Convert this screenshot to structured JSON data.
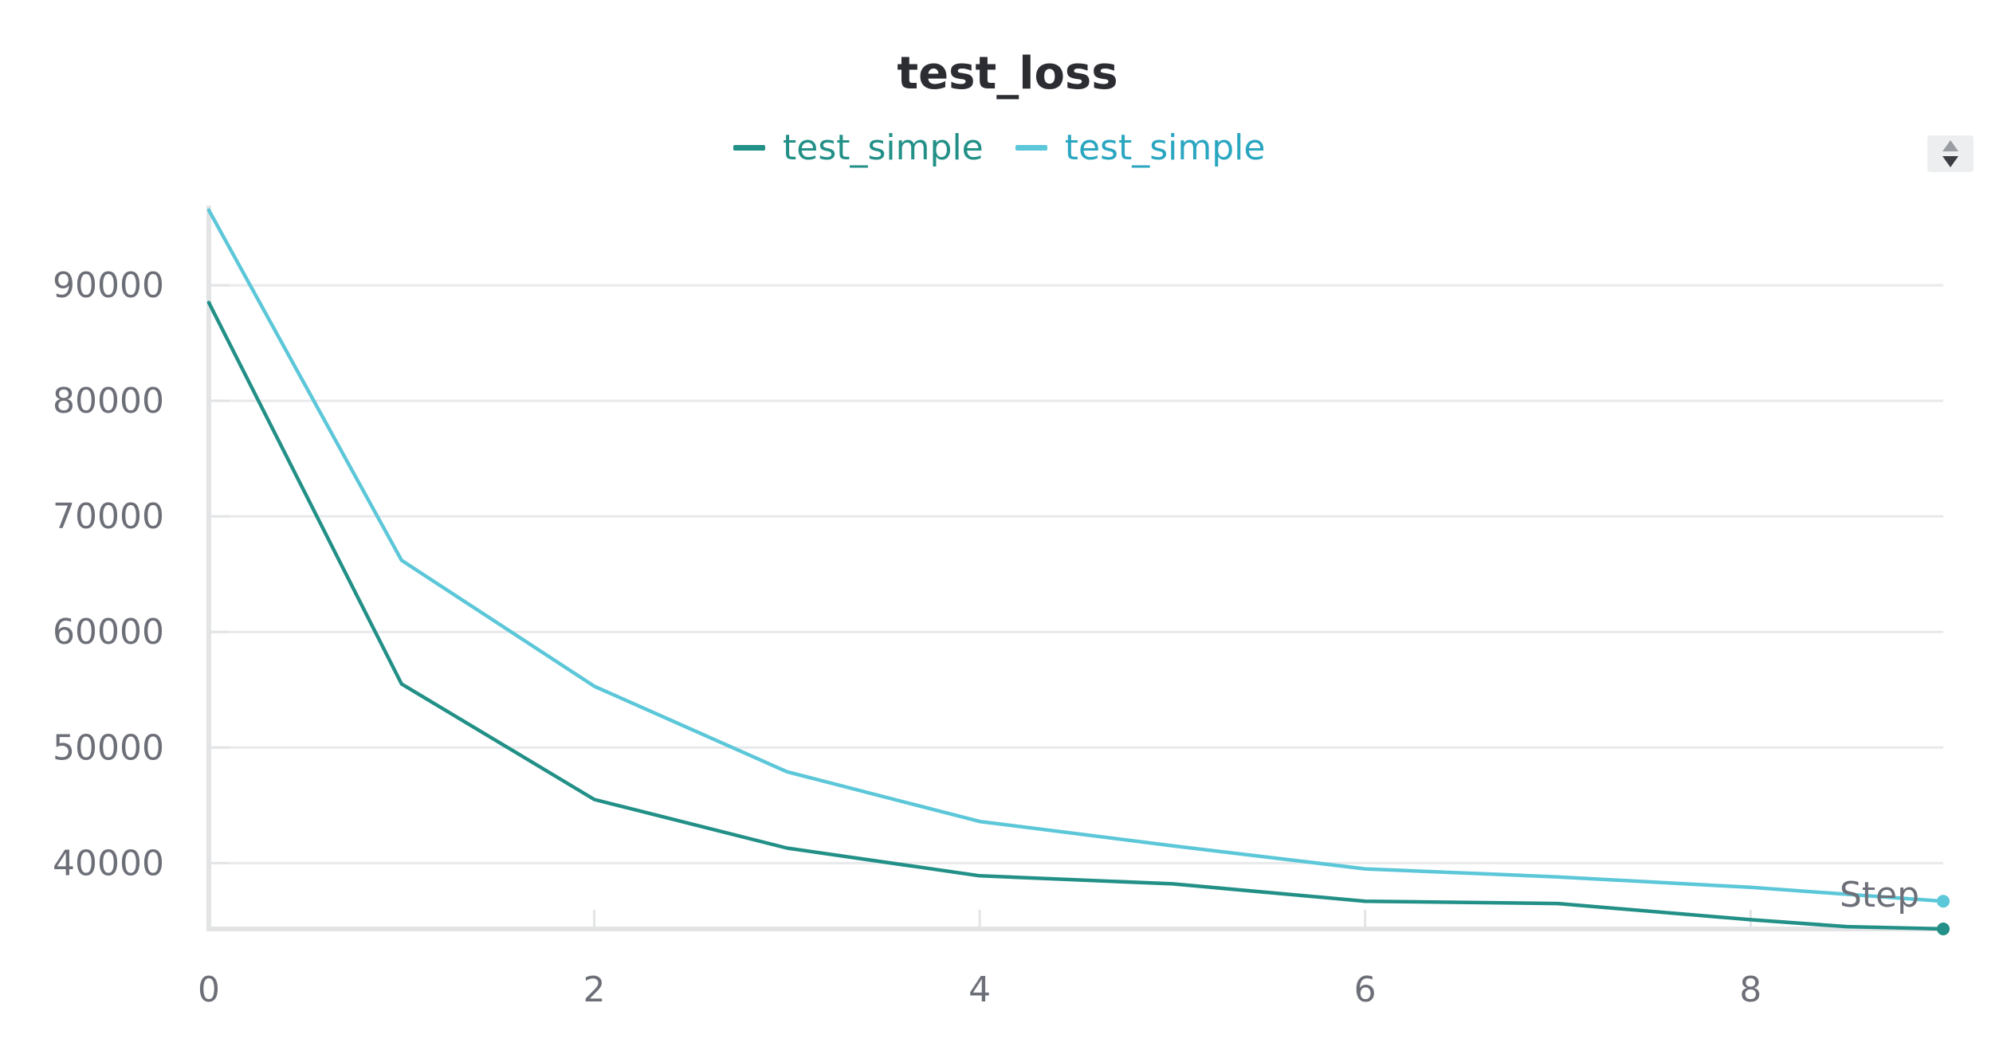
{
  "chart_data": {
    "type": "line",
    "title": "test_loss",
    "xlabel": "Step",
    "ylabel": "",
    "x": [
      0,
      1,
      2,
      3,
      4,
      5,
      6,
      7,
      8,
      8.5,
      9
    ],
    "series": [
      {
        "name": "test_simple",
        "color": "#229087",
        "values": [
          88500,
          55500,
          45500,
          41300,
          38900,
          38200,
          36700,
          36500,
          35100,
          34500,
          34300
        ]
      },
      {
        "name": "test_simple",
        "color": "#5cc7d8",
        "values": [
          96500,
          66200,
          55300,
          47900,
          43600,
          41500,
          39500,
          38800,
          37900,
          null,
          36700
        ]
      }
    ],
    "xlim": [
      0,
      9
    ],
    "ylim": [
      34300,
      96900
    ],
    "x_ticks": [
      "0",
      "2",
      "4",
      "6",
      "8"
    ],
    "y_ticks": [
      "90000",
      "80000",
      "70000",
      "60000",
      "50000",
      "40000"
    ],
    "grid": true,
    "legend_position": "top-center"
  }
}
